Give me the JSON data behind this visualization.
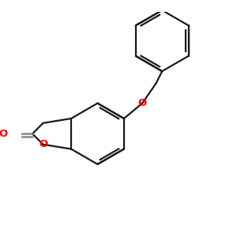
{
  "bg_color": "#ffffff",
  "bond_color": "#1a1a1a",
  "oxygen_color": "#ff0000",
  "carbonyl_color": "#888888",
  "line_width": 1.6,
  "figsize": [
    3.0,
    3.0
  ],
  "dpi": 100,
  "xlim": [
    -2.5,
    4.5
  ],
  "ylim": [
    -3.5,
    3.5
  ]
}
